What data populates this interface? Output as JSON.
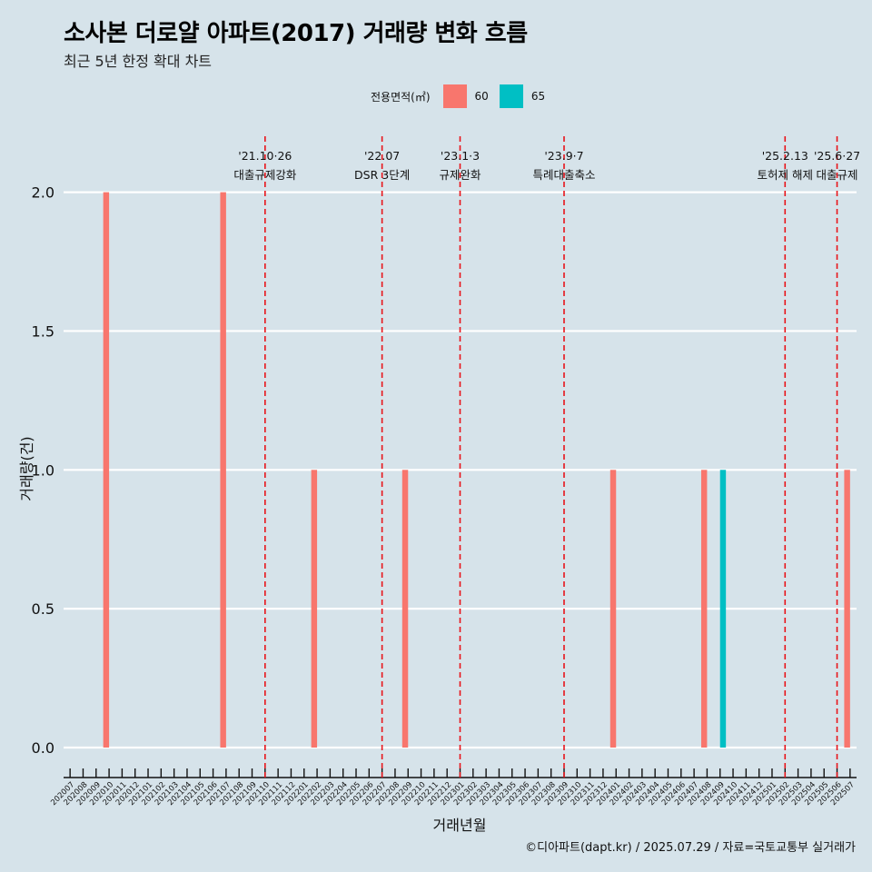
{
  "header": {
    "title": "소사본 더로얄 아파트(2017) 거래량 변화 흐름",
    "subtitle": "최근 5년 한정 확대 차트"
  },
  "legend": {
    "title": "전용면적(㎡)",
    "items": [
      {
        "label": "60",
        "color": "#F8766D"
      },
      {
        "label": "65",
        "color": "#00BFC4"
      }
    ]
  },
  "caption": "©디아파트(dapt.kr) / 2025.07.29 / 자료=국토교통부 실거래가",
  "chart_data": {
    "type": "bar",
    "xlabel": "거래년월",
    "ylabel": "거래량(건)",
    "ylim": [
      0,
      2
    ],
    "yticks": [
      "0.0",
      "0.5",
      "1.0",
      "1.5",
      "2.0"
    ],
    "grid": "horizontal",
    "categories": [
      "202007",
      "202008",
      "202009",
      "202010",
      "202011",
      "202012",
      "202101",
      "202102",
      "202103",
      "202104",
      "202105",
      "202106",
      "202107",
      "202108",
      "202109",
      "202110",
      "202111",
      "202112",
      "202201",
      "202202",
      "202203",
      "202204",
      "202205",
      "202206",
      "202207",
      "202208",
      "202209",
      "202210",
      "202211",
      "202212",
      "202301",
      "202302",
      "202303",
      "202304",
      "202305",
      "202306",
      "202307",
      "202308",
      "202309",
      "202310",
      "202311",
      "202312",
      "202401",
      "202402",
      "202403",
      "202404",
      "202405",
      "202406",
      "202407",
      "202408",
      "202409",
      "202410",
      "202411",
      "202412",
      "202501",
      "202502",
      "202503",
      "202504",
      "202505",
      "202506",
      "202507"
    ],
    "series": [
      {
        "name": "60",
        "color": "#F8766D",
        "points": [
          {
            "x": "202010",
            "y": 2
          },
          {
            "x": "202107",
            "y": 2
          },
          {
            "x": "202202",
            "y": 1
          },
          {
            "x": "202209",
            "y": 1
          },
          {
            "x": "202401",
            "y": 1
          },
          {
            "x": "202408",
            "y": 1
          },
          {
            "x": "202507",
            "y": 1
          }
        ]
      },
      {
        "name": "65",
        "color": "#00BFC4",
        "points": [
          {
            "x": "202409",
            "y": 1
          }
        ]
      }
    ],
    "annotations": [
      {
        "date_label": "'21.10·26",
        "event": "대출규제강화",
        "x": "202110"
      },
      {
        "date_label": "'22.07",
        "event": "DSR 3단계",
        "x": "202207"
      },
      {
        "date_label": "'23.1·3",
        "event": "규제완화",
        "x": "202301"
      },
      {
        "date_label": "'23.9·7",
        "event": "특례대출축소",
        "x": "202309"
      },
      {
        "date_label": "'25.2.13",
        "event": "토허제 해제",
        "x": "202502"
      },
      {
        "date_label": "'25.6·27",
        "event": "대출규제",
        "x": "202506"
      }
    ]
  }
}
